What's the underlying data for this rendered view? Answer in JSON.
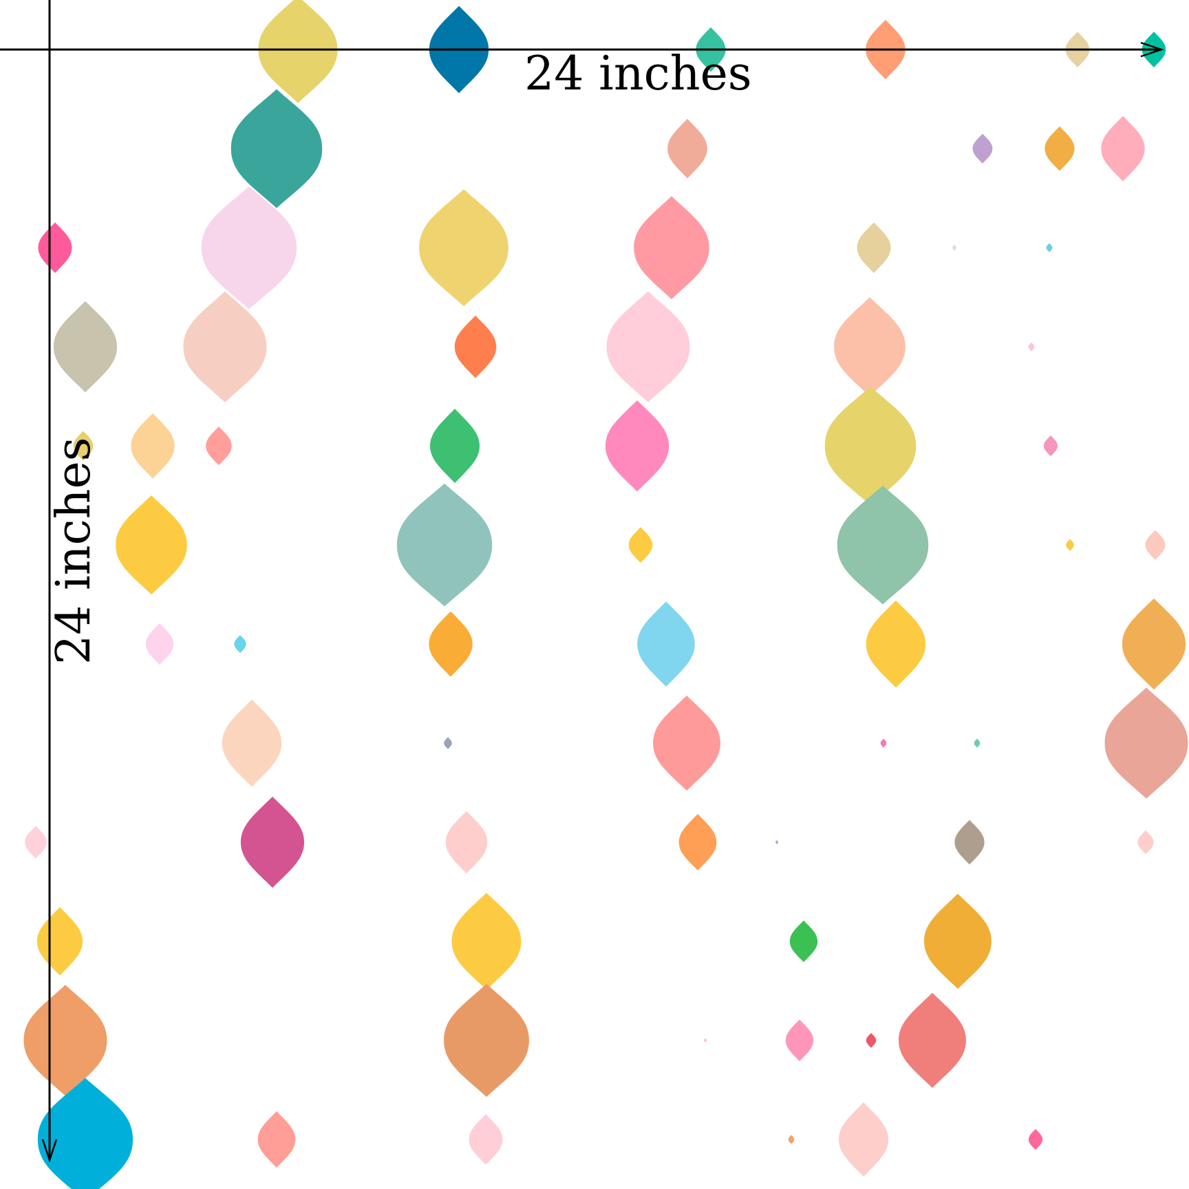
{
  "dimensions": {
    "width_label": "24 inches",
    "height_label": "24 inches"
  },
  "colors": {
    "line": "#000000",
    "background": "#ffffff"
  },
  "shapes": [
    {
      "c": "#E6D36A",
      "v": 0.4
    },
    {
      "c": "#0077A8",
      "v": 0.3
    },
    {
      "c": "#36C2A0",
      "v": 0.15
    },
    {
      "c": "#FF9E75",
      "v": 0.2
    },
    {
      "c": "#E6D2A0",
      "v": 0.12
    },
    {
      "c": "#00C2A0",
      "v": 0.12
    },
    {
      "c": "#3AA59A",
      "v": 0.46
    },
    {
      "c": "#F0AC98",
      "v": 0.2
    },
    {
      "c": "#BEA1CE",
      "v": 0.1
    },
    {
      "c": "#F0AE45",
      "v": 0.15
    },
    {
      "c": "#FFADBA",
      "v": 0.22
    },
    {
      "c": "#FF5A9A",
      "v": 0.17
    },
    {
      "c": "#F7D6EC",
      "v": 0.48
    },
    {
      "c": "#EFD36E",
      "v": 0.45
    },
    {
      "c": "#FF9AA3",
      "v": 0.38
    },
    {
      "c": "#E6D09C",
      "v": 0.17
    },
    {
      "c": "#E4D6F0",
      "v": 0.02
    },
    {
      "c": "#66D0E8",
      "v": 0.03
    },
    {
      "c": "#C8C3AD",
      "v": 0.32
    },
    {
      "c": "#F7CFC2",
      "v": 0.42
    },
    {
      "c": "#FF7E4D",
      "v": 0.21
    },
    {
      "c": "#FFCEDA",
      "v": 0.42
    },
    {
      "c": "#FCC0A8",
      "v": 0.36
    },
    {
      "c": "#FCC6D7",
      "v": 0.03
    },
    {
      "c": "#E6D06E",
      "v": 0.1
    },
    {
      "c": "#FDD295",
      "v": 0.22
    },
    {
      "c": "#FF9E9A",
      "v": 0.13
    },
    {
      "c": "#3DC072",
      "v": 0.25
    },
    {
      "c": "#FF88BC",
      "v": 0.32
    },
    {
      "c": "#E6D36A",
      "v": 0.46
    },
    {
      "c": "#F696BC",
      "v": 0.07
    },
    {
      "c": "#FDCB42",
      "v": 0.36
    },
    {
      "c": "#8FC3BB",
      "v": 0.48
    },
    {
      "c": "#FDCB42",
      "v": 0.12
    },
    {
      "c": "#8FC3AA",
      "v": 0.46
    },
    {
      "c": "#FDCB42",
      "v": 0.04
    },
    {
      "c": "#FBC9BD",
      "v": 0.1
    },
    {
      "c": "#FDD4EC",
      "v": 0.14
    },
    {
      "c": "#66D6EA",
      "v": 0.06
    },
    {
      "c": "#F9AC36",
      "v": 0.22
    },
    {
      "c": "#7FD6EE",
      "v": 0.29
    },
    {
      "c": "#FDCB42",
      "v": 0.3
    },
    {
      "c": "#F0AE55",
      "v": 0.32
    },
    {
      "c": "#FCD5BE",
      "v": 0.3
    },
    {
      "c": "#99A2BA",
      "v": 0.04
    },
    {
      "c": "#FF9A9A",
      "v": 0.34
    },
    {
      "c": "#F07CB8",
      "v": 0.03
    },
    {
      "c": "#6BCFAE",
      "v": 0.03
    },
    {
      "c": "#E8A598",
      "v": 0.42
    },
    {
      "c": "#FFD1DA",
      "v": 0.11
    },
    {
      "c": "#D45491",
      "v": 0.32
    },
    {
      "c": "#FDCECC",
      "v": 0.21
    },
    {
      "c": "#FF9E55",
      "v": 0.19
    },
    {
      "c": "#ADA6D9",
      "v": 0.01
    },
    {
      "c": "#AE9E8E",
      "v": 0.15
    },
    {
      "c": "#FDCECA",
      "v": 0.08
    },
    {
      "c": "#FDCB42",
      "v": 0.23
    },
    {
      "c": "#FDCB42",
      "v": 0.35
    },
    {
      "c": "#3AC053",
      "v": 0.14
    },
    {
      "c": "#F0AE36",
      "v": 0.34
    },
    {
      "c": "#EE9E66",
      "v": 0.42
    },
    {
      "c": "#E89A66",
      "v": 0.43
    },
    {
      "c": "#F5C0D8",
      "v": 0.01
    },
    {
      "c": "#FF96BA",
      "v": 0.14
    },
    {
      "c": "#EE5866",
      "v": 0.05
    },
    {
      "c": "#F07E7A",
      "v": 0.34
    },
    {
      "c": "#00B0DA",
      "v": 0.48
    },
    {
      "c": "#FF9E96",
      "v": 0.19
    },
    {
      "c": "#FFCED7",
      "v": 0.17
    },
    {
      "c": "#F5A06E",
      "v": 0.03
    },
    {
      "c": "#FDCECA",
      "v": 0.25
    },
    {
      "c": "#FF6699",
      "v": 0.07
    }
  ]
}
